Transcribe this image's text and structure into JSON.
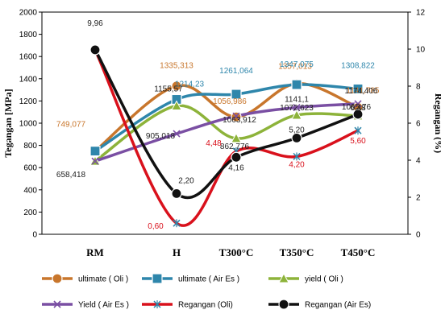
{
  "chart_data": {
    "type": "line",
    "categories": [
      "RM",
      "H",
      "T300°C",
      "T350°C",
      "T450°C"
    ],
    "ylabel": "Tegangan [MPa]",
    "y2label": "Regangan (%)",
    "ylim": [
      0,
      2000
    ],
    "y2lim": [
      0,
      12
    ],
    "yticks": [
      "0",
      "200",
      "400",
      "600",
      "800",
      "1000",
      "1200",
      "1400",
      "1600",
      "1800",
      "2000"
    ],
    "y2ticks": [
      "0",
      "2",
      "4",
      "6",
      "8",
      "10",
      "12"
    ],
    "grid": false,
    "legend_position": "bottom",
    "series": [
      {
        "name": "ultimate ( Oli )",
        "axis": "left",
        "color": "#c8762c",
        "marker": "circle",
        "values": [
          749.077,
          1335.313,
          1056.986,
          1357.013,
          1141.785
        ],
        "labels": [
          "749,077",
          "1335,313",
          "1056,986",
          "1357,013",
          "1141,785"
        ]
      },
      {
        "name": "ultimate ( Air Es )",
        "axis": "left",
        "color": "#2e86ab",
        "marker": "square",
        "values": [
          749.077,
          1214.23,
          1261.064,
          1347.075,
          1308.822
        ],
        "labels": [
          "",
          "1214,23",
          "1261,064",
          "1347,075",
          "1308,822"
        ]
      },
      {
        "name": "yield ( Oli )",
        "axis": "left",
        "color": "#8db33a",
        "marker": "triangle",
        "values": [
          658.418,
          1155.57,
          862.776,
          1072.623,
          1065.76
        ],
        "labels": [
          "658,418",
          "1155,57",
          "862,776",
          "1072,623",
          "1065,76"
        ]
      },
      {
        "name": "Yield ( Air Es )",
        "axis": "left",
        "color": "#7a4fa3",
        "marker": "x",
        "values": [
          658.418,
          905.018,
          1063.912,
          1141.1,
          1174.406
        ],
        "labels": [
          "",
          "905,018",
          "1063,912",
          "1141,1",
          "1174,406"
        ]
      },
      {
        "name": "Regangan (Oli)",
        "axis": "right",
        "color": "#d9111c",
        "marker": "star",
        "values": [
          9.96,
          0.6,
          4.48,
          4.2,
          5.6
        ],
        "labels": [
          "",
          "0,60",
          "4,48",
          "4,20",
          "5,60"
        ]
      },
      {
        "name": "Regangan (Air Es)",
        "axis": "right",
        "color": "#111111",
        "marker": "circle",
        "values": [
          9.96,
          2.2,
          4.16,
          5.2,
          6.48
        ],
        "labels": [
          "9,96",
          "2,20",
          "4,16",
          "5,20",
          "6,48"
        ]
      }
    ]
  }
}
